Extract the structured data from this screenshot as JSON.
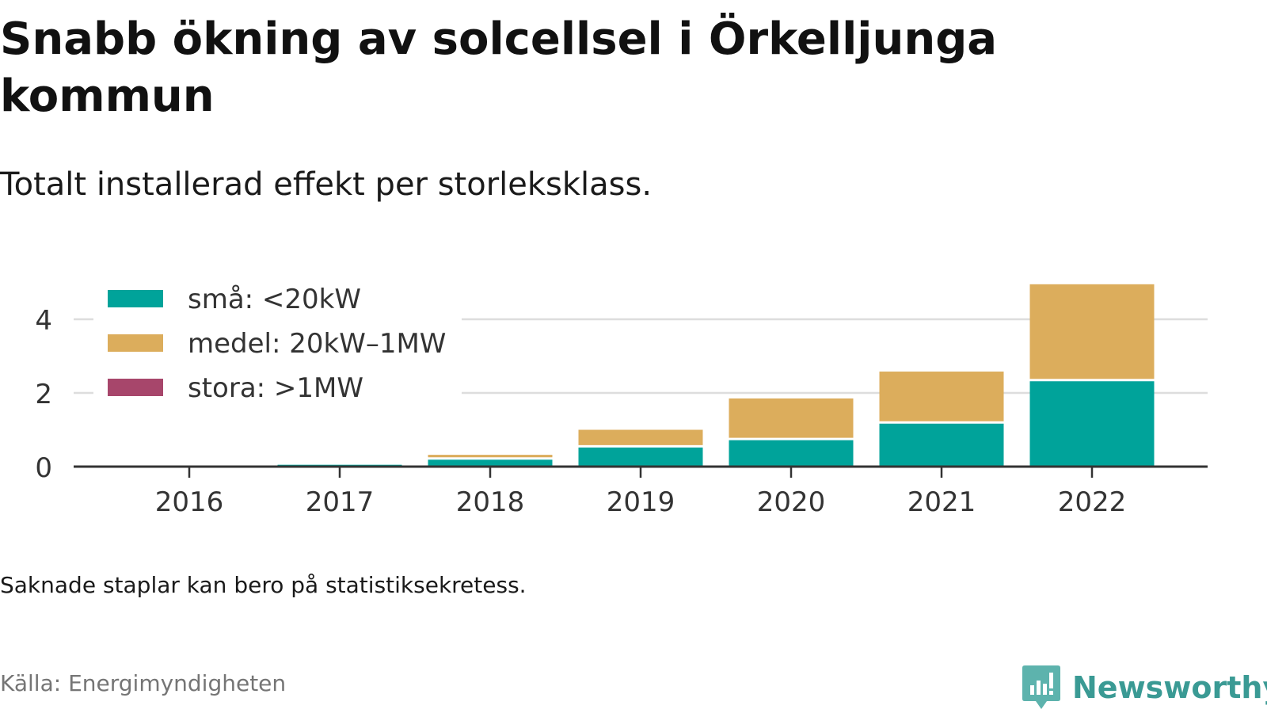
{
  "title": "Snabb ökning av solcellsel i Örkelljunga kommun",
  "subtitle": "Totalt installerad effekt per storleksklass.",
  "note": "Saknade staplar kan bero på statistiksekretess.",
  "source": "Källa: Energimyndigheten",
  "brand": {
    "name": "Newsworthy",
    "icon": "newsworthy-logo-icon",
    "color": "#3a9a94"
  },
  "chart_data": {
    "type": "bar",
    "stacked": true,
    "categories": [
      "2016",
      "2017",
      "2018",
      "2019",
      "2020",
      "2021",
      "2022"
    ],
    "series": [
      {
        "name": "små: <20kW",
        "color": "#00a39a",
        "values": [
          0.0,
          0.05,
          0.22,
          0.55,
          0.75,
          1.2,
          2.35
        ]
      },
      {
        "name": "medel: 20kW–1MW",
        "color": "#dcad5c",
        "values": [
          0.0,
          0.0,
          0.1,
          0.45,
          1.1,
          1.38,
          2.6
        ]
      },
      {
        "name": "stora: >1MW",
        "color": "#a7466b",
        "values": [
          0,
          0,
          0,
          0,
          0,
          0,
          0
        ]
      }
    ],
    "yticks": [
      0,
      2,
      4
    ],
    "ylim": [
      0,
      5
    ],
    "grid": true,
    "legend": "top-left",
    "xlabel": "",
    "ylabel": ""
  }
}
